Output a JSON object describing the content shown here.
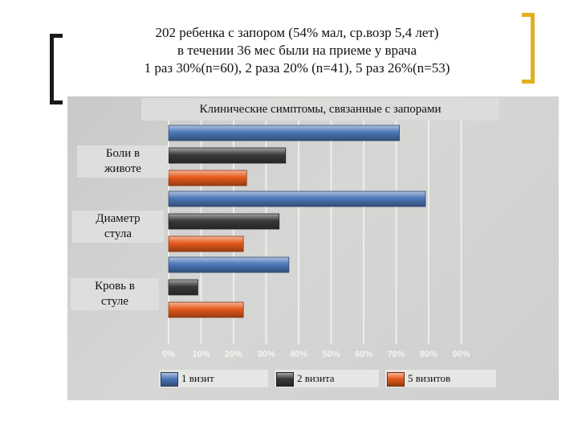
{
  "slide": {
    "title_lines": [
      "202 ребенка с запором (54% мал, ср.возр 5,4 лет)",
      "в течении 36 мес были на приеме у врача",
      "1 раз 30%(n=60), 2 раза 20% (n=41), 5 раз 26%(n=53)"
    ],
    "colors": {
      "left_bracket": "#1a1a1a",
      "right_bracket": "#e0b020"
    }
  },
  "chart_data": {
    "type": "bar",
    "orientation": "horizontal",
    "title": "Клинические симптомы, связанные с запорами",
    "categories": [
      "Боли в животе",
      "Диаметр стула",
      "Кровь в стуле"
    ],
    "category_labels": [
      [
        "Боли в",
        "животе"
      ],
      [
        "Диаметр",
        "стула"
      ],
      [
        "Кровь в",
        "стуле"
      ]
    ],
    "series": [
      {
        "name": "1 визит",
        "values": [
          71,
          79,
          37
        ],
        "color": "#4d78b8"
      },
      {
        "name": "2 визита",
        "values": [
          36,
          34,
          9
        ],
        "color": "#3a3a3c"
      },
      {
        "name": "5 визитов",
        "values": [
          24,
          23,
          23
        ],
        "color": "#e65a1c"
      }
    ],
    "xlim": [
      0,
      90
    ],
    "xticks": [
      "0%",
      "10%",
      "20%",
      "30%",
      "40%",
      "50%",
      "60%",
      "70%",
      "80%",
      "90%"
    ],
    "grid": true,
    "legend_position": "bottom"
  }
}
